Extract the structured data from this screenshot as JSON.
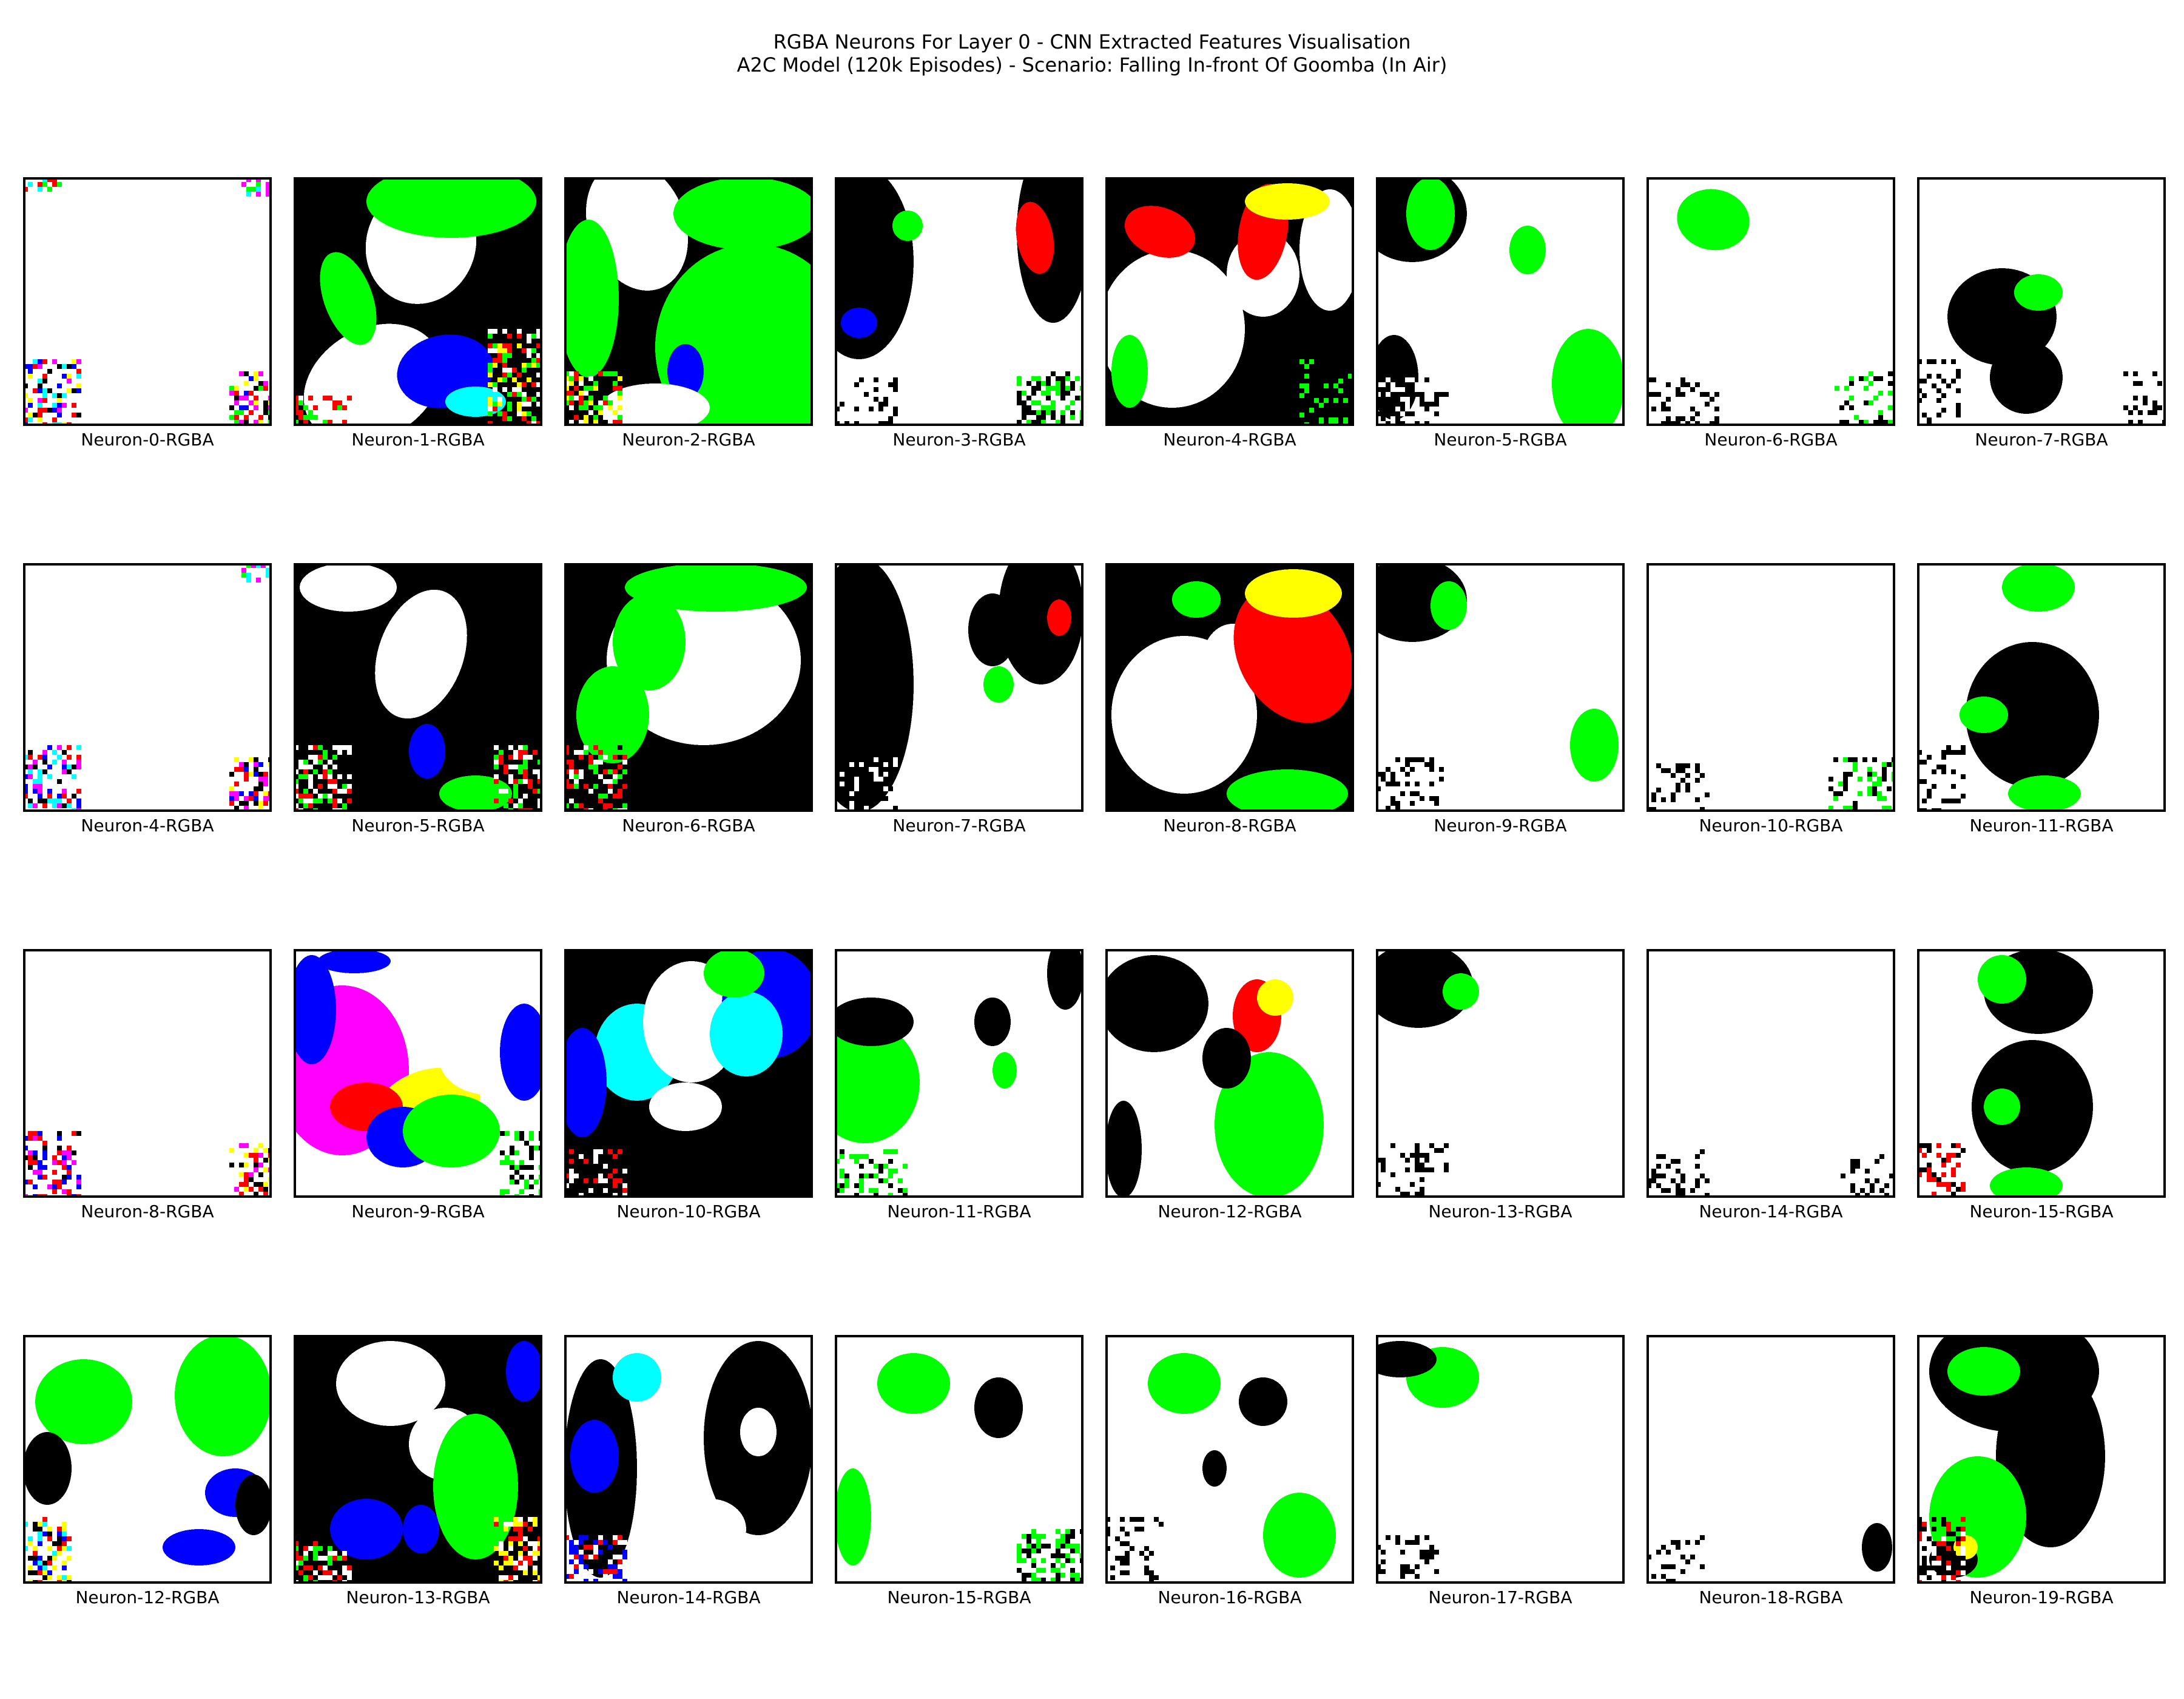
{
  "figure": {
    "title_line_1": "RGBA Neurons For Layer 0 - CNN Extracted Features Visualisation",
    "title_line_2": "A2C Model (120k Episodes) - Scenario: Falling In-front Of Goomba (In Air)"
  },
  "colors": {
    "background": "#ffffff",
    "black": "#000000",
    "green": "#00ff00",
    "blue": "#0000ff",
    "red": "#ff0000",
    "yellow": "#ffff00",
    "cyan": "#00ffff",
    "magenta": "#ff00ff",
    "frame": "#000000"
  },
  "panels": [
    [
      {
        "label": "Neuron-0-RGBA",
        "dominant_colors": [
          "white",
          "cyan",
          "red",
          "yellow",
          "magenta"
        ]
      },
      {
        "label": "Neuron-1-RGBA",
        "dominant_colors": [
          "black",
          "white",
          "green",
          "blue",
          "cyan"
        ]
      },
      {
        "label": "Neuron-2-RGBA",
        "dominant_colors": [
          "black",
          "green",
          "white",
          "blue",
          "red"
        ]
      },
      {
        "label": "Neuron-3-RGBA",
        "dominant_colors": [
          "white",
          "black",
          "red",
          "blue",
          "green"
        ]
      },
      {
        "label": "Neuron-4-RGBA",
        "dominant_colors": [
          "white",
          "black",
          "red",
          "yellow",
          "green"
        ]
      },
      {
        "label": "Neuron-5-RGBA",
        "dominant_colors": [
          "white",
          "black",
          "green"
        ]
      },
      {
        "label": "Neuron-6-RGBA",
        "dominant_colors": [
          "white",
          "green",
          "black"
        ]
      },
      {
        "label": "Neuron-7-RGBA",
        "dominant_colors": [
          "white",
          "black",
          "green"
        ]
      }
    ],
    [
      {
        "label": "Neuron-4-RGBA",
        "dominant_colors": [
          "white",
          "blue",
          "red",
          "magenta"
        ]
      },
      {
        "label": "Neuron-5-RGBA",
        "dominant_colors": [
          "black",
          "white",
          "green",
          "blue"
        ]
      },
      {
        "label": "Neuron-6-RGBA",
        "dominant_colors": [
          "white",
          "green",
          "black",
          "red"
        ]
      },
      {
        "label": "Neuron-7-RGBA",
        "dominant_colors": [
          "white",
          "black",
          "green",
          "red"
        ]
      },
      {
        "label": "Neuron-8-RGBA",
        "dominant_colors": [
          "black",
          "white",
          "red",
          "yellow",
          "green"
        ]
      },
      {
        "label": "Neuron-9-RGBA",
        "dominant_colors": [
          "white",
          "black",
          "green"
        ]
      },
      {
        "label": "Neuron-10-RGBA",
        "dominant_colors": [
          "white",
          "black",
          "green"
        ]
      },
      {
        "label": "Neuron-11-RGBA",
        "dominant_colors": [
          "white",
          "black",
          "green"
        ]
      }
    ],
    [
      {
        "label": "Neuron-8-RGBA",
        "dominant_colors": [
          "white",
          "blue",
          "red",
          "magenta"
        ]
      },
      {
        "label": "Neuron-9-RGBA",
        "dominant_colors": [
          "white",
          "magenta",
          "blue",
          "yellow",
          "green",
          "cyan",
          "red"
        ]
      },
      {
        "label": "Neuron-10-RGBA",
        "dominant_colors": [
          "black",
          "cyan",
          "blue",
          "white",
          "green"
        ]
      },
      {
        "label": "Neuron-11-RGBA",
        "dominant_colors": [
          "white",
          "black",
          "green",
          "red"
        ]
      },
      {
        "label": "Neuron-12-RGBA",
        "dominant_colors": [
          "white",
          "black",
          "green",
          "red",
          "yellow"
        ]
      },
      {
        "label": "Neuron-13-RGBA",
        "dominant_colors": [
          "white",
          "black",
          "green"
        ]
      },
      {
        "label": "Neuron-14-RGBA",
        "dominant_colors": [
          "white",
          "black",
          "green"
        ]
      },
      {
        "label": "Neuron-15-RGBA",
        "dominant_colors": [
          "white",
          "black",
          "green",
          "red"
        ]
      }
    ],
    [
      {
        "label": "Neuron-12-RGBA",
        "dominant_colors": [
          "white",
          "green",
          "black",
          "blue",
          "cyan"
        ]
      },
      {
        "label": "Neuron-13-RGBA",
        "dominant_colors": [
          "black",
          "white",
          "green",
          "blue",
          "red"
        ]
      },
      {
        "label": "Neuron-14-RGBA",
        "dominant_colors": [
          "white",
          "black",
          "blue",
          "cyan",
          "red"
        ]
      },
      {
        "label": "Neuron-15-RGBA",
        "dominant_colors": [
          "white",
          "green",
          "black"
        ]
      },
      {
        "label": "Neuron-16-RGBA",
        "dominant_colors": [
          "white",
          "green",
          "black",
          "red"
        ]
      },
      {
        "label": "Neuron-17-RGBA",
        "dominant_colors": [
          "white",
          "green",
          "black"
        ]
      },
      {
        "label": "Neuron-18-RGBA",
        "dominant_colors": [
          "white",
          "black"
        ]
      },
      {
        "label": "Neuron-19-RGBA",
        "dominant_colors": [
          "white",
          "black",
          "green",
          "red",
          "yellow"
        ]
      }
    ]
  ]
}
